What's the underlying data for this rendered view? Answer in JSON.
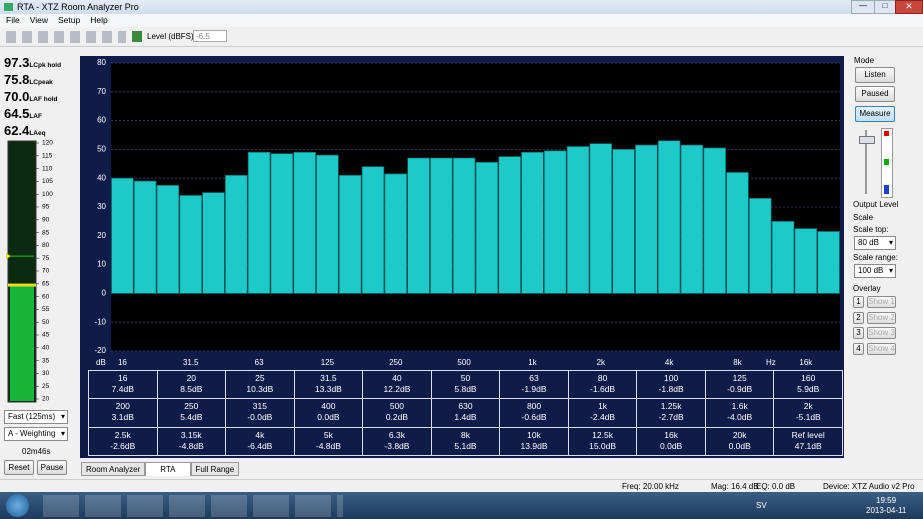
{
  "window": {
    "title": "RTA - XTZ Room Analyzer Pro",
    "menu": [
      "File",
      "View",
      "Setup",
      "Help"
    ],
    "level_label": "Level (dBFS)",
    "level_value": "-6.5"
  },
  "readouts": [
    {
      "value": 97.3,
      "unit": "LCpk hold"
    },
    {
      "value": 75.8,
      "unit": "LCpeak"
    },
    {
      "value": 70,
      "label": "70.0",
      "unit": "LAF hold"
    },
    {
      "value": 64.5,
      "unit": "LAF"
    },
    {
      "value": 62.4,
      "unit": "LAeq"
    }
  ],
  "meter": {
    "ylim": [
      20,
      120
    ],
    "yticks": [
      120,
      115,
      110,
      105,
      100,
      95,
      90,
      85,
      80,
      75,
      70,
      65,
      60,
      55,
      50,
      45,
      40,
      35,
      30,
      25,
      20
    ]
  },
  "left_controls": {
    "response": "Fast (125ms)",
    "weighting": "A - Weighting",
    "elapsed": "02m46s",
    "buttons": [
      "Reset",
      "Pause"
    ]
  },
  "chart_data": {
    "type": "bar",
    "ylabel": "dB",
    "xlabel": "Hz",
    "categories": [
      "16",
      null,
      null,
      "31.5",
      null,
      null,
      "63",
      null,
      null,
      "125",
      null,
      null,
      "250",
      null,
      null,
      "500",
      null,
      null,
      "1k",
      null,
      null,
      "2k",
      null,
      null,
      "4k",
      null,
      null,
      "8k",
      null,
      null,
      "16k",
      null
    ],
    "values": [
      40,
      39,
      37.5,
      34,
      35,
      41,
      49,
      48.5,
      49,
      48,
      41,
      44,
      41.5,
      47,
      47,
      47,
      45.5,
      47.5,
      49,
      49.5,
      51,
      52,
      50,
      51.5,
      53,
      51.5,
      50.5,
      42,
      33,
      25,
      22.5,
      21.5
    ],
    "color": "#1ccaca",
    "ylim": [
      -20,
      80
    ],
    "yticks": [
      -20,
      -10,
      0,
      10,
      20,
      30,
      40,
      50,
      60,
      70,
      80
    ],
    "grid": true
  },
  "table": {
    "rows": [
      [
        [
          "16",
          "7.4dB"
        ],
        [
          "20",
          "8.5dB"
        ],
        [
          "25",
          "10.3dB"
        ],
        [
          "31.5",
          "13.3dB"
        ],
        [
          "40",
          "12.2dB"
        ],
        [
          "50",
          "5.8dB"
        ],
        [
          "63",
          "-1.9dB"
        ],
        [
          "80",
          "-1.6dB"
        ],
        [
          "100",
          "-1.8dB"
        ],
        [
          "125",
          "-0.9dB"
        ],
        [
          "160",
          "5.9dB"
        ]
      ],
      [
        [
          "200",
          "3.1dB"
        ],
        [
          "250",
          "5.4dB"
        ],
        [
          "315",
          "-0.0dB"
        ],
        [
          "400",
          "0.0dB"
        ],
        [
          "500",
          "0.2dB"
        ],
        [
          "630",
          "1.4dB"
        ],
        [
          "800",
          "-0.6dB"
        ],
        [
          "1k",
          "-2.4dB"
        ],
        [
          "1.25k",
          "-2.7dB"
        ],
        [
          "1.6k",
          "-4.0dB"
        ],
        [
          "2k",
          "-5.1dB"
        ]
      ],
      [
        [
          "2.5k",
          "-2.6dB"
        ],
        [
          "3.15k",
          "-4.8dB"
        ],
        [
          "4k",
          "-6.4dB"
        ],
        [
          "5k",
          "-4.8dB"
        ],
        [
          "6.3k",
          "-3.8dB"
        ],
        [
          "8k",
          "5.1dB"
        ],
        [
          "10k",
          "13.9dB"
        ],
        [
          "12.5k",
          "15.0dB"
        ],
        [
          "16k",
          "0.0dB"
        ],
        [
          "20k",
          "0.0dB"
        ],
        [
          "Ref level",
          "47.1dB"
        ]
      ]
    ]
  },
  "tabs": [
    "Room Analyzer",
    "RTA",
    "Full Range"
  ],
  "right_panel": {
    "mode": "Mode",
    "buttons": [
      "Listen",
      "Paused",
      "Measure"
    ],
    "output_level": "Output Level",
    "scale": "Scale",
    "scale_top_label": "Scale top:",
    "scale_top": "80 dB",
    "scale_range_label": "Scale range:",
    "scale_range": "100 dB",
    "overlay": "Overlay",
    "overlay_items": [
      [
        "1",
        "Show 1"
      ],
      [
        "2",
        "Show 2"
      ],
      [
        "3",
        "Show 3"
      ],
      [
        "4",
        "Show 4"
      ]
    ]
  },
  "status": [
    "Freq: 20.00 kHz",
    "Mag: 16.4 dB",
    "EQ: 0.0 dB",
    "Device: XTZ Audio v2 Pro"
  ],
  "taskbar": {
    "language": "SV",
    "time": "19:59",
    "date": "2013-04-11"
  }
}
